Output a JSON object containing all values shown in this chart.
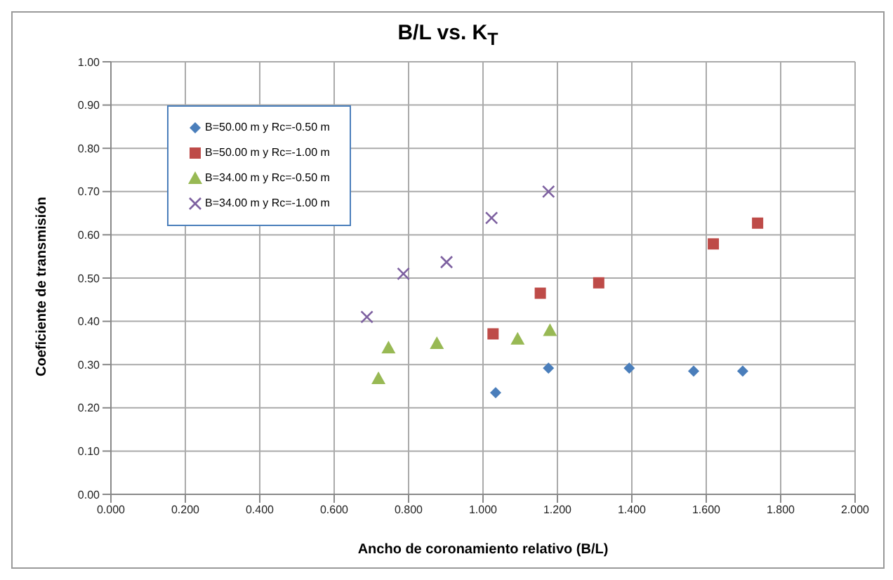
{
  "chart_data": {
    "type": "scatter",
    "title": "B/L vs. K$_{T}$",
    "xlabel": "Ancho de coronamiento relativo (B/L)",
    "ylabel": "Coeficiente de transmisión",
    "xlim": [
      0,
      2
    ],
    "ylim": [
      0,
      1
    ],
    "xticks": [
      {
        "value": 0,
        "label": "0.000"
      },
      {
        "value": 0.2,
        "label": "0.200"
      },
      {
        "value": 0.4,
        "label": "0.400"
      },
      {
        "value": 0.6,
        "label": "0.600"
      },
      {
        "value": 0.8,
        "label": "0.800"
      },
      {
        "value": 1,
        "label": "1.000"
      },
      {
        "value": 1.2,
        "label": "1.200"
      },
      {
        "value": 1.4,
        "label": "1.400"
      },
      {
        "value": 1.6,
        "label": "1.600"
      },
      {
        "value": 1.8,
        "label": "1.800"
      },
      {
        "value": 2,
        "label": "2.000"
      }
    ],
    "yticks": [
      {
        "value": 0,
        "label": "0.00"
      },
      {
        "value": 0.1,
        "label": "0.10"
      },
      {
        "value": 0.2,
        "label": "0.20"
      },
      {
        "value": 0.3,
        "label": "0.30"
      },
      {
        "value": 0.4,
        "label": "0.40"
      },
      {
        "value": 0.5,
        "label": "0.50"
      },
      {
        "value": 0.6,
        "label": "0.60"
      },
      {
        "value": 0.7,
        "label": "0.70"
      },
      {
        "value": 0.8,
        "label": "0.80"
      },
      {
        "value": 0.9,
        "label": "0.90"
      },
      {
        "value": 1,
        "label": "1.00"
      }
    ],
    "grid": true,
    "legend": "top left",
    "series": [
      {
        "name": "B=50.00 m y Rc=-0.50 m",
        "color": "#4a7ebb",
        "marker": "diamond",
        "x": [
          1.034,
          1.176,
          1.393,
          1.566,
          1.698
        ],
        "values": [
          0.235,
          0.292,
          0.292,
          0.285,
          0.285
        ]
      },
      {
        "name": "B=50.00 m y Rc=-1.00 m",
        "color": "#be4b48",
        "marker": "square",
        "x": [
          1.027,
          1.154,
          1.311,
          1.619,
          1.738
        ],
        "values": [
          0.371,
          0.465,
          0.489,
          0.579,
          0.627
        ]
      },
      {
        "name": "B=34.00 m y Rc=-0.50 m",
        "color": "#98b954",
        "marker": "triangle",
        "x": [
          0.719,
          0.746,
          0.876,
          1.093,
          1.18
        ],
        "values": [
          0.268,
          0.339,
          0.349,
          0.359,
          0.379
        ]
      },
      {
        "name": "B=34.00 m y Rc=-1.00 m",
        "color": "#7d60a0",
        "marker": "cross",
        "x": [
          0.688,
          0.786,
          0.902,
          1.023,
          1.176
        ],
        "values": [
          0.41,
          0.51,
          0.537,
          0.639,
          0.7
        ]
      }
    ]
  }
}
